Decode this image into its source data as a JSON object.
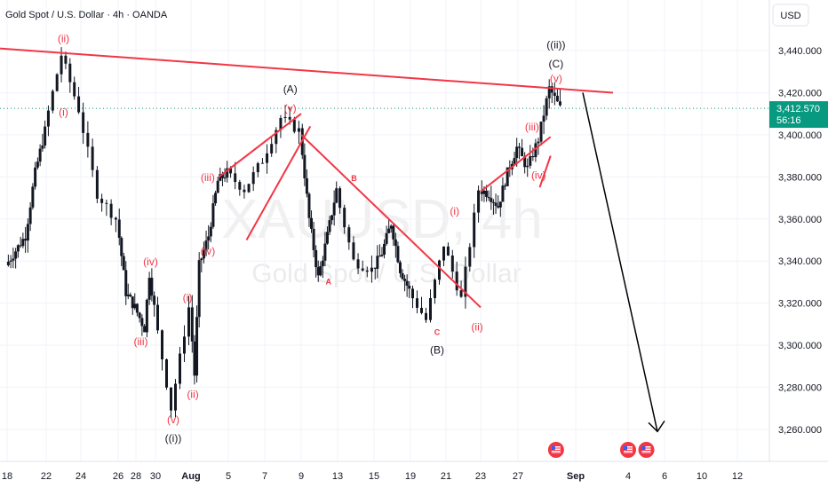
{
  "header": {
    "title": "Gold Spot / U.S. Dollar · 4h · OANDA",
    "currency_button": "USD"
  },
  "watermark": {
    "symbol": "XAUUSD, 4h",
    "name": "Gold Spot / U.S. Dollar"
  },
  "colors": {
    "up": "#26a69a",
    "down": "#ef5350",
    "candle": "#131722",
    "trendline": "#f23645",
    "wave_red": "#f23645",
    "price_badge": "#089981",
    "projection": "#000000"
  },
  "current_price": {
    "price": "3,412.570",
    "countdown": "56:16",
    "value": 3412.57
  },
  "chart_data": {
    "type": "candlestick",
    "timeframe": "4h",
    "y_axis": {
      "min": 3250,
      "max": 3460,
      "ticks": [
        3440,
        3420,
        3400,
        3380,
        3360,
        3340,
        3320,
        3300,
        3280,
        3260
      ],
      "tick_labels": [
        "3,440.000",
        "3,420.000",
        "3,400.000",
        "3,380.000",
        "3,360.000",
        "3,340.000",
        "3,320.000",
        "3,300.000",
        "3,280.000",
        "3,260.000"
      ]
    },
    "x_axis": {
      "start": "Jul 18",
      "end": "Sep 12",
      "tick_labels": [
        {
          "label": "18",
          "date": "Jul 18"
        },
        {
          "label": "22",
          "date": "Jul 22"
        },
        {
          "label": "24",
          "date": "Jul 24"
        },
        {
          "label": "26",
          "date": "Jul 26"
        },
        {
          "label": "28",
          "date": "Jul 28"
        },
        {
          "label": "30",
          "date": "Jul 30"
        },
        {
          "label": "Aug",
          "date": "Aug 1",
          "bold": true
        },
        {
          "label": "5",
          "date": "Aug 5"
        },
        {
          "label": "7",
          "date": "Aug 7"
        },
        {
          "label": "9",
          "date": "Aug 9"
        },
        {
          "label": "13",
          "date": "Aug 13"
        },
        {
          "label": "15",
          "date": "Aug 15"
        },
        {
          "label": "19",
          "date": "Aug 19"
        },
        {
          "label": "21",
          "date": "Aug 21"
        },
        {
          "label": "23",
          "date": "Aug 23"
        },
        {
          "label": "27",
          "date": "Aug 27"
        },
        {
          "label": "Sep",
          "date": "Sep 1",
          "bold": true
        },
        {
          "label": "4",
          "date": "Sep 4"
        },
        {
          "label": "6",
          "date": "Sep 6"
        },
        {
          "label": "10",
          "date": "Sep 10"
        },
        {
          "label": "12",
          "date": "Sep 12"
        }
      ]
    },
    "price_path": [
      {
        "date": "Jul 18",
        "price": 3338
      },
      {
        "date": "Jul 19",
        "price": 3345
      },
      {
        "date": "Jul 20",
        "price": 3352
      },
      {
        "date": "Jul 21",
        "price": 3382
      },
      {
        "date": "Jul 22",
        "price": 3402
      },
      {
        "date": "Jul 23",
        "price": 3438
      },
      {
        "date": "Jul 24",
        "price": 3412
      },
      {
        "date": "Jul 25",
        "price": 3372
      },
      {
        "date": "Jul 26",
        "price": 3360
      },
      {
        "date": "Jul 27",
        "price": 3325
      },
      {
        "date": "Jul 28",
        "price": 3318
      },
      {
        "date": "Jul 29",
        "price": 3308
      },
      {
        "date": "Jul 29.5",
        "price": 3334
      },
      {
        "date": "Jul 30",
        "price": 3318
      },
      {
        "date": "Jul 31",
        "price": 3270
      },
      {
        "date": "Aug 1",
        "price": 3318
      },
      {
        "date": "Aug 1.5",
        "price": 3286
      },
      {
        "date": "Aug 2",
        "price": 3338
      },
      {
        "date": "Aug 3",
        "price": 3352
      },
      {
        "date": "Aug 4",
        "price": 3378
      },
      {
        "date": "Aug 5",
        "price": 3382
      },
      {
        "date": "Aug 6",
        "price": 3374
      },
      {
        "date": "Aug 7",
        "price": 3388
      },
      {
        "date": "Aug 8",
        "price": 3408
      },
      {
        "date": "Aug 9",
        "price": 3402
      },
      {
        "date": "Aug 10",
        "price": 3360
      },
      {
        "date": "Aug 11",
        "price": 3332
      },
      {
        "date": "Aug 12",
        "price": 3352
      },
      {
        "date": "Aug 13",
        "price": 3374
      },
      {
        "date": "Aug 14",
        "price": 3340
      },
      {
        "date": "Aug 15",
        "price": 3336
      },
      {
        "date": "Aug 16",
        "price": 3344
      },
      {
        "date": "Aug 17",
        "price": 3358
      },
      {
        "date": "Aug 18",
        "price": 3336
      },
      {
        "date": "Aug 19",
        "price": 3326
      },
      {
        "date": "Aug 20",
        "price": 3312
      },
      {
        "date": "Aug 21",
        "price": 3348
      },
      {
        "date": "Aug 22",
        "price": 3322
      },
      {
        "date": "Aug 23",
        "price": 3374
      },
      {
        "date": "Aug 24",
        "price": 3372
      },
      {
        "date": "Aug 25",
        "price": 3366
      },
      {
        "date": "Aug 26",
        "price": 3382
      },
      {
        "date": "Aug 27",
        "price": 3394
      },
      {
        "date": "Aug 28",
        "price": 3384
      },
      {
        "date": "Aug 29",
        "price": 3398
      },
      {
        "date": "Aug 30",
        "price": 3422
      },
      {
        "date": "Aug 31",
        "price": 3412.57
      }
    ],
    "trendlines": [
      {
        "name": "upper-resistance",
        "from": {
          "date": "Jul 18",
          "price": 3441
        },
        "to": {
          "date": "Sep 2",
          "price": 3420
        },
        "color": "#f23645"
      },
      {
        "name": "abc-channel-upper",
        "from": {
          "date": "Aug 4",
          "price": 3380
        },
        "to": {
          "date": "Aug 9",
          "price": 3410
        },
        "color": "#f23645"
      },
      {
        "name": "abc-channel-lower",
        "from": {
          "date": "Aug 6",
          "price": 3350
        },
        "to": {
          "date": "Aug 10",
          "price": 3404
        },
        "color": "#f23645"
      },
      {
        "name": "b-wave-downtrend",
        "from": {
          "date": "Aug 9",
          "price": 3400
        },
        "to": {
          "date": "Aug 23",
          "price": 3318
        },
        "color": "#f23645"
      },
      {
        "name": "c-wave-channel-upper",
        "from": {
          "date": "Aug 23",
          "price": 3373
        },
        "to": {
          "date": "Aug 30",
          "price": 3399
        },
        "color": "#f23645"
      },
      {
        "name": "c-wave-channel-lower",
        "from": {
          "date": "Aug 29",
          "price": 3375
        },
        "to": {
          "date": "Aug 30",
          "price": 3390
        },
        "color": "#f23645"
      }
    ],
    "projection": {
      "from": {
        "date": "Sep 2",
        "price": 3420
      },
      "to": {
        "date": "Sep 6",
        "price": 3259
      },
      "color": "#000000"
    },
    "wave_labels": [
      {
        "text": "(ii)",
        "date": "Jul 23",
        "price": 3444,
        "style": "red"
      },
      {
        "text": "(i)",
        "date": "Jul 23",
        "price": 3409,
        "style": "red"
      },
      {
        "text": "(iv)",
        "date": "Jul 29.5",
        "price": 3338,
        "style": "red"
      },
      {
        "text": "(iii)",
        "date": "Jul 28.5",
        "price": 3300,
        "style": "red"
      },
      {
        "text": "(i)",
        "date": "Aug 0.8",
        "price": 3321,
        "style": "red"
      },
      {
        "text": "(ii)",
        "date": "Aug 1.2",
        "price": 3275,
        "style": "red"
      },
      {
        "text": "(v)",
        "date": "Jul 31",
        "price": 3263,
        "style": "red"
      },
      {
        "text": "((i))",
        "date": "Jul 31",
        "price": 3254,
        "style": "black"
      },
      {
        "text": "(iii)",
        "date": "Aug 2.8",
        "price": 3378,
        "style": "red"
      },
      {
        "text": "(iv)",
        "date": "Aug 2.8",
        "price": 3343,
        "style": "red"
      },
      {
        "text": "(A)",
        "date": "Aug 8.4",
        "price": 3420,
        "style": "black"
      },
      {
        "text": "(v)",
        "date": "Aug 8.4",
        "price": 3411,
        "style": "red"
      },
      {
        "text": "B",
        "date": "Aug 13.9",
        "price": 3378,
        "style": "small"
      },
      {
        "text": "A",
        "date": "Aug 12",
        "price": 3329,
        "style": "small"
      },
      {
        "text": "C",
        "date": "Aug 20.5",
        "price": 3305,
        "style": "small"
      },
      {
        "text": "(B)",
        "date": "Aug 20.5",
        "price": 3296,
        "style": "black"
      },
      {
        "text": "(i)",
        "date": "Aug 21.5",
        "price": 3362,
        "style": "red"
      },
      {
        "text": "(ii)",
        "date": "Aug 22.8",
        "price": 3307,
        "style": "red"
      },
      {
        "text": "(iii)",
        "date": "Aug 28.3",
        "price": 3402,
        "style": "red"
      },
      {
        "text": "(iv)",
        "date": "Aug 28.9",
        "price": 3379,
        "style": "red"
      },
      {
        "text": "(v)",
        "date": "Aug 30.5",
        "price": 3425,
        "style": "red"
      },
      {
        "text": "(C)",
        "date": "Aug 30.5",
        "price": 3432,
        "style": "black"
      },
      {
        "text": "((ii))",
        "date": "Aug 30.5",
        "price": 3441,
        "style": "black"
      }
    ],
    "event_markers": [
      {
        "date": "Aug 30.5",
        "icon": "us-flag-event-icon"
      },
      {
        "date": "Sep 4",
        "icon": "us-flag-event-icon"
      },
      {
        "date": "Sep 5",
        "icon": "us-flag-event-icon"
      }
    ]
  }
}
